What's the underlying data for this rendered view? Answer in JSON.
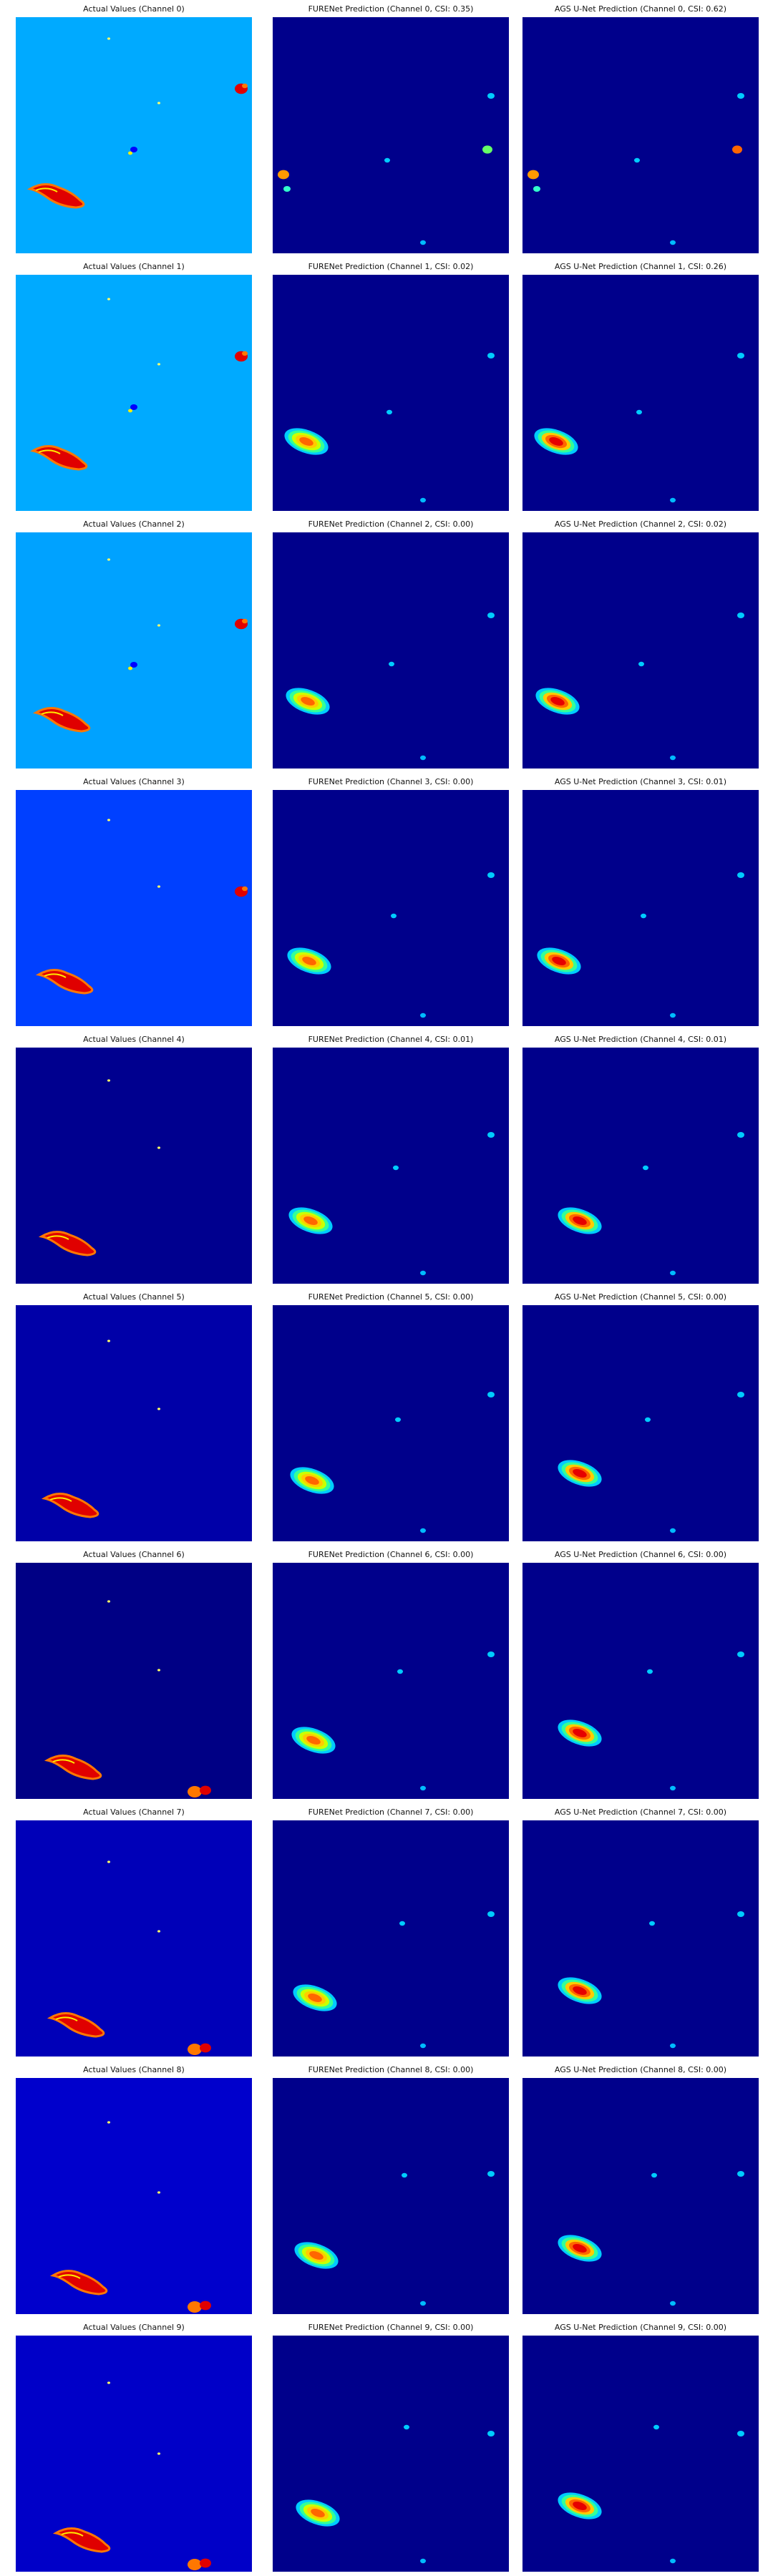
{
  "colors": {
    "jet_light": "#00aaff",
    "jet_blue_mid": "#0033ff",
    "jet_navy": "#00008b",
    "jet_dark": "#000080"
  },
  "rows": [
    {
      "titles": [
        "Actual Values (Channel 0)",
        "FURENet Prediction (Channel 0, CSI: 0.35)",
        "AGS U-Net Prediction (Channel 0, CSI: 0.62)"
      ],
      "actual_bg": "#00aaff"
    },
    {
      "titles": [
        "Actual Values (Channel 1)",
        "FURENet Prediction (Channel 1, CSI: 0.02)",
        "AGS U-Net Prediction (Channel 1, CSI: 0.26)"
      ],
      "actual_bg": "#00aaff"
    },
    {
      "titles": [
        "Actual Values (Channel 2)",
        "FURENet Prediction (Channel 2, CSI: 0.00)",
        "AGS U-Net Prediction (Channel 2, CSI: 0.02)"
      ],
      "actual_bg": "#00a2ff"
    },
    {
      "titles": [
        "Actual Values (Channel 3)",
        "FURENet Prediction (Channel 3, CSI: 0.00)",
        "AGS U-Net Prediction (Channel 3, CSI: 0.01)"
      ],
      "actual_bg": "#0040ff"
    },
    {
      "titles": [
        "Actual Values (Channel 4)",
        "FURENet Prediction (Channel 4, CSI: 0.01)",
        "AGS U-Net Prediction (Channel 4, CSI: 0.01)"
      ],
      "actual_bg": "#00008f"
    },
    {
      "titles": [
        "Actual Values (Channel 5)",
        "FURENet Prediction (Channel 5, CSI: 0.00)",
        "AGS U-Net Prediction (Channel 5, CSI: 0.00)"
      ],
      "actual_bg": "#0000a8"
    },
    {
      "titles": [
        "Actual Values (Channel 6)",
        "FURENet Prediction (Channel 6, CSI: 0.00)",
        "AGS U-Net Prediction (Channel 6, CSI: 0.00)"
      ],
      "actual_bg": "#000085"
    },
    {
      "titles": [
        "Actual Values (Channel 7)",
        "FURENet Prediction (Channel 7, CSI: 0.00)",
        "AGS U-Net Prediction (Channel 7, CSI: 0.00)"
      ],
      "actual_bg": "#0000b8"
    },
    {
      "titles": [
        "Actual Values (Channel 8)",
        "FURENet Prediction (Channel 8, CSI: 0.00)",
        "AGS U-Net Prediction (Channel 8, CSI: 0.00)"
      ],
      "actual_bg": "#0000cc"
    },
    {
      "titles": [
        "Actual Values (Channel 9)",
        "FURENet Prediction (Channel 9, CSI: 0.00)",
        "AGS U-Net Prediction (Channel 9, CSI: 0.00)"
      ],
      "actual_bg": "#0000c8"
    }
  ]
}
